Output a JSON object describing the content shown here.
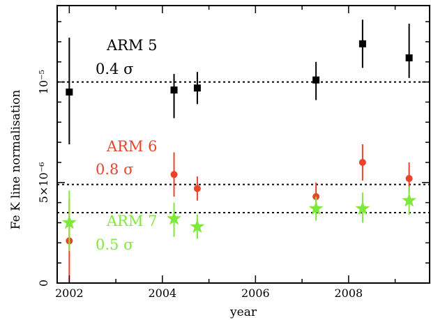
{
  "chart_data": {
    "type": "scatter",
    "xlabel": "year",
    "ylabel": "Fe K line normalisation",
    "xlim": [
      2001.74,
      2009.74
    ],
    "ylim": [
      0,
      1.38e-05
    ],
    "x_ticks": [
      {
        "value": 2002,
        "label": "2002"
      },
      {
        "value": 2004,
        "label": "2004"
      },
      {
        "value": 2006,
        "label": "2006"
      },
      {
        "value": 2008,
        "label": "2008"
      }
    ],
    "y_ticks": [
      {
        "value": 0,
        "label": "0"
      },
      {
        "value": 5e-06,
        "label": "5×10⁻⁶"
      },
      {
        "value": 1e-05,
        "label": "10⁻⁵"
      }
    ],
    "grid": false,
    "series": [
      {
        "name": "ARM 5",
        "label": "ARM 5",
        "note": "0.4 σ",
        "color": "#000000",
        "marker": "square",
        "mean": 1e-05,
        "points": [
          {
            "x": 2002.0,
            "y": 9.5e-06,
            "ylo": 6.9e-06,
            "yhi": 1.22e-05
          },
          {
            "x": 2004.25,
            "y": 9.6e-06,
            "ylo": 8.2e-06,
            "yhi": 1.04e-05
          },
          {
            "x": 2004.75,
            "y": 9.7e-06,
            "ylo": 8.9e-06,
            "yhi": 1.05e-05
          },
          {
            "x": 2007.3,
            "y": 1.01e-05,
            "ylo": 9.1e-06,
            "yhi": 1.1e-05
          },
          {
            "x": 2008.3,
            "y": 1.19e-05,
            "ylo": 1.07e-05,
            "yhi": 1.31e-05
          },
          {
            "x": 2009.3,
            "y": 1.12e-05,
            "ylo": 1.02e-05,
            "yhi": 1.29e-05
          }
        ]
      },
      {
        "name": "ARM 6",
        "label": "ARM 6",
        "note": "0.8 σ",
        "color": "#e8442b",
        "marker": "circle",
        "mean": 4.9e-06,
        "points": [
          {
            "x": 2002.0,
            "y": 2.1e-06,
            "ylo": 0.0,
            "yhi": 4.2e-06
          },
          {
            "x": 2004.25,
            "y": 5.4e-06,
            "ylo": 4.3e-06,
            "yhi": 6.5e-06
          },
          {
            "x": 2004.75,
            "y": 4.7e-06,
            "ylo": 4.1e-06,
            "yhi": 5.3e-06
          },
          {
            "x": 2007.3,
            "y": 4.3e-06,
            "ylo": 3.6e-06,
            "yhi": 5e-06
          },
          {
            "x": 2008.3,
            "y": 6e-06,
            "ylo": 5.1e-06,
            "yhi": 6.9e-06
          },
          {
            "x": 2009.3,
            "y": 5.2e-06,
            "ylo": 4.5e-06,
            "yhi": 6e-06
          }
        ]
      },
      {
        "name": "ARM 7",
        "label": "ARM 7",
        "note": "0.5 σ",
        "color": "#7ee83b",
        "marker": "star",
        "mean": 3.5e-06,
        "points": [
          {
            "x": 2002.0,
            "y": 3e-06,
            "ylo": 1.6e-06,
            "yhi": 4.6e-06
          },
          {
            "x": 2004.25,
            "y": 3.2e-06,
            "ylo": 2.3e-06,
            "yhi": 4e-06
          },
          {
            "x": 2004.75,
            "y": 2.8e-06,
            "ylo": 2.2e-06,
            "yhi": 3.4e-06
          },
          {
            "x": 2007.3,
            "y": 3.7e-06,
            "ylo": 3.1e-06,
            "yhi": 4.3e-06
          },
          {
            "x": 2008.3,
            "y": 3.7e-06,
            "ylo": 3e-06,
            "yhi": 4.5e-06
          },
          {
            "x": 2009.3,
            "y": 4.1e-06,
            "ylo": 3.4e-06,
            "yhi": 4.8e-06
          }
        ]
      }
    ]
  }
}
